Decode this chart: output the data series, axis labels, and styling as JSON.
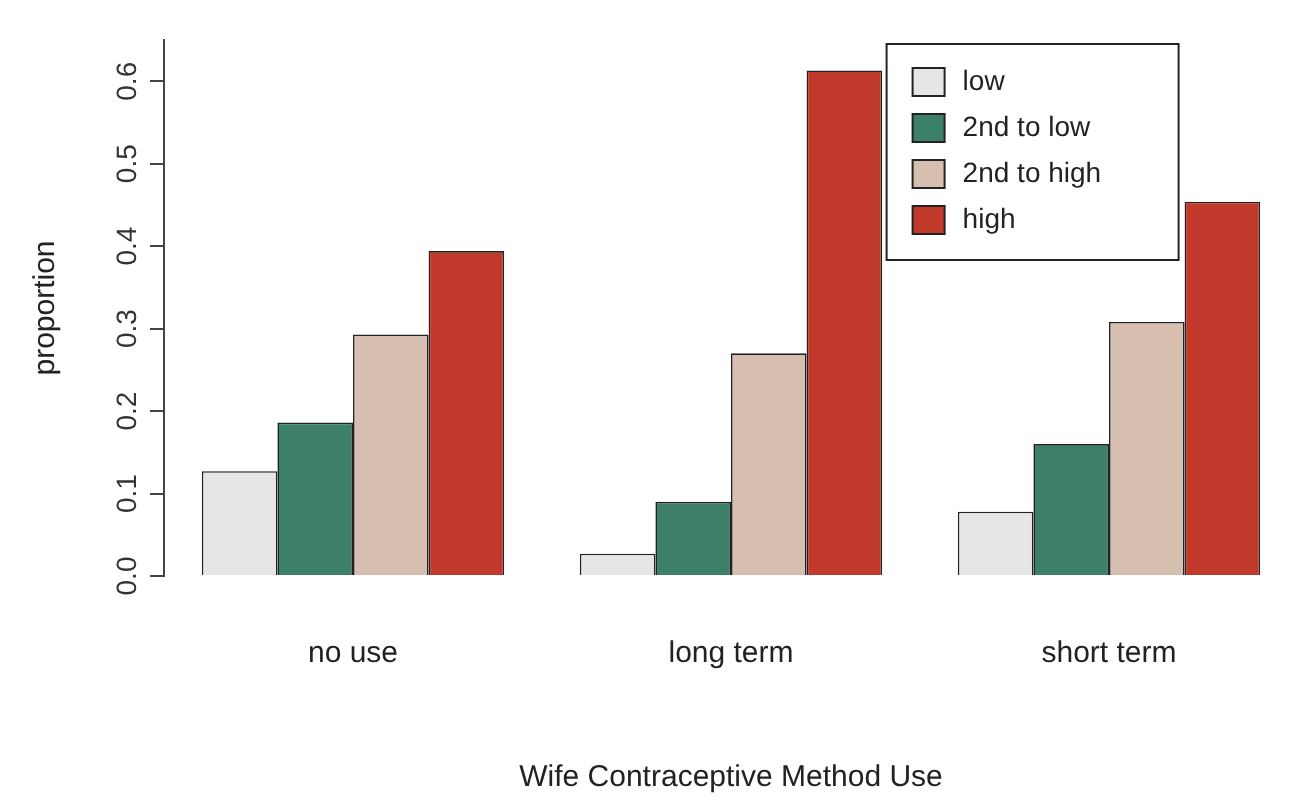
{
  "chart_data": {
    "type": "bar",
    "xlabel": "Wife Contraceptive Method Use",
    "ylabel": "proportion",
    "categories": [
      "no use",
      "long term",
      "short term"
    ],
    "series": [
      {
        "name": "low",
        "color": "#e6e6e6",
        "values": [
          0.127,
          0.027,
          0.078
        ]
      },
      {
        "name": "2nd to low",
        "color": "#3d8068",
        "values": [
          0.186,
          0.09,
          0.16
        ]
      },
      {
        "name": "2nd to high",
        "color": "#d6bfb0",
        "values": [
          0.293,
          0.27,
          0.308
        ]
      },
      {
        "name": "high",
        "color": "#c0392b",
        "values": [
          0.394,
          0.613,
          0.454
        ]
      }
    ],
    "ylim": [
      0,
      0.65
    ],
    "yticks": [
      {
        "value": 0,
        "label": "0.0"
      },
      0.1,
      0.2,
      0.3,
      0.4,
      0.5,
      0.6
    ],
    "grid": false,
    "legend": "top right"
  }
}
